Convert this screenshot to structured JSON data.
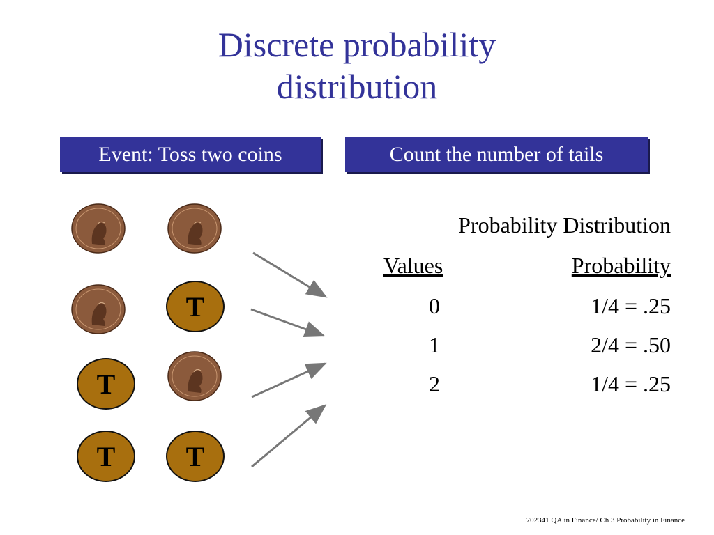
{
  "title": {
    "line1": "Discrete probability",
    "line2": "distribution"
  },
  "boxes": {
    "event": "Event: Toss two coins",
    "count": "Count the number of tails"
  },
  "coins": {
    "tails_label": "T"
  },
  "distribution": {
    "heading": "Probability Distribution",
    "values_header": "Values",
    "probability_header": "Probability",
    "rows": [
      {
        "value": "0",
        "probability": "1/4 = .25"
      },
      {
        "value": "1",
        "probability": "2/4 = .50"
      },
      {
        "value": "2",
        "probability": "1/4 = .25"
      }
    ]
  },
  "footer": "702341 QA in Finance/  Ch 3 Probability in Finance",
  "colors": {
    "title": "#333399",
    "box": "#333399",
    "tails_coin": "#a86f0e",
    "penny": "#8b5a3c"
  },
  "icons": [
    "penny-heads-icon",
    "tails-coin-icon",
    "arrow-icon"
  ]
}
